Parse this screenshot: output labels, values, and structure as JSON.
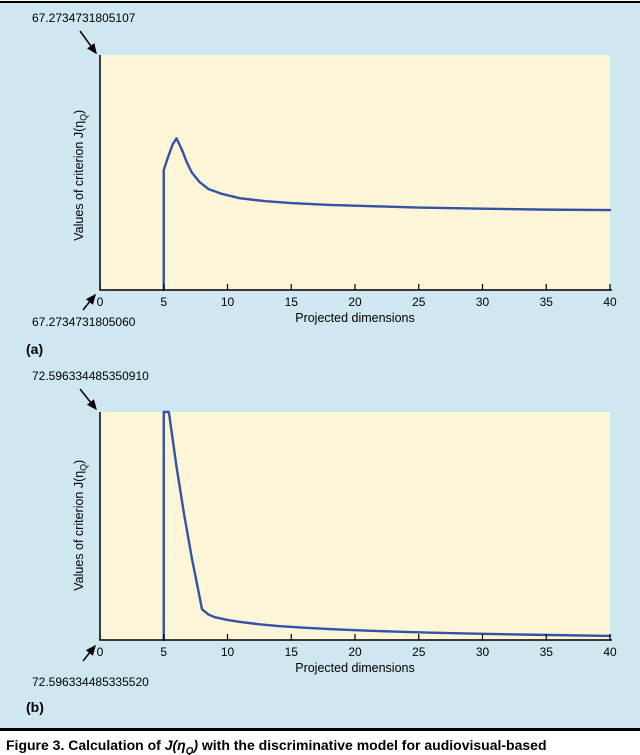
{
  "figure": {
    "caption_prefix": "Figure 3. Calculation of ",
    "caption_formula_pre": "J(η",
    "caption_formula_sub": "Q",
    "caption_formula_post": ")",
    "caption_suffix": " with the discriminative model for audiovisual-based"
  },
  "styles": {
    "panel_bg": "#cfe7f1",
    "plot_bg": "#fdf5d7",
    "line_color": "#3353a4",
    "axis_color": "#000000"
  },
  "chart_data": [
    {
      "type": "line",
      "panel_label": "(a)",
      "ymax_label": "67.2734731805107",
      "ymin_label": "67.2734731805060",
      "ylim_labels": [
        67.273473180506,
        67.2734731805107
      ],
      "ylabel_pre": "Values of criterion J(η",
      "ylabel_sub": "Q",
      "ylabel_post": ")",
      "xlabel": "Projected dimensions",
      "xlim": [
        0,
        40
      ],
      "x_ticks": [
        0,
        5,
        10,
        15,
        20,
        25,
        30,
        35,
        40
      ],
      "grid": false,
      "legend": false,
      "y_scale": "fraction_of_axis",
      "series": [
        {
          "name": "criterion",
          "x": [
            5,
            5,
            5.3,
            5.7,
            6.0,
            6.4,
            6.8,
            7.2,
            7.8,
            8.5,
            9.5,
            11,
            13,
            15,
            18,
            21,
            25,
            30,
            35,
            40
          ],
          "y_frac": [
            0,
            0.51,
            0.56,
            0.62,
            0.645,
            0.6,
            0.545,
            0.5,
            0.46,
            0.43,
            0.41,
            0.39,
            0.378,
            0.37,
            0.362,
            0.357,
            0.351,
            0.346,
            0.342,
            0.34
          ]
        }
      ]
    },
    {
      "type": "line",
      "panel_label": "(b)",
      "ymax_label": "72.596334485350910",
      "ymin_label": "72.596334485335520",
      "ylim_labels": [
        72.59633448533552,
        72.59633448535091
      ],
      "ylabel_pre": "Values of criterion J(η",
      "ylabel_sub": "Q",
      "ylabel_post": ")",
      "xlabel": "Projected dimensions",
      "xlim": [
        0,
        40
      ],
      "x_ticks": [
        0,
        5,
        10,
        15,
        20,
        25,
        30,
        35,
        40
      ],
      "grid": false,
      "legend": false,
      "y_scale": "fraction_of_axis",
      "series": [
        {
          "name": "criterion",
          "x": [
            5,
            5,
            5.4,
            6.0,
            6.6,
            7.2,
            7.7,
            8.0,
            8.5,
            9.0,
            10,
            11,
            12.5,
            14,
            16,
            18,
            20,
            23,
            26,
            30,
            34,
            40
          ],
          "y_frac": [
            0,
            1.0,
            1.0,
            0.76,
            0.55,
            0.36,
            0.22,
            0.135,
            0.112,
            0.1,
            0.088,
            0.079,
            0.069,
            0.061,
            0.054,
            0.048,
            0.043,
            0.037,
            0.032,
            0.027,
            0.023,
            0.018
          ]
        }
      ]
    }
  ]
}
